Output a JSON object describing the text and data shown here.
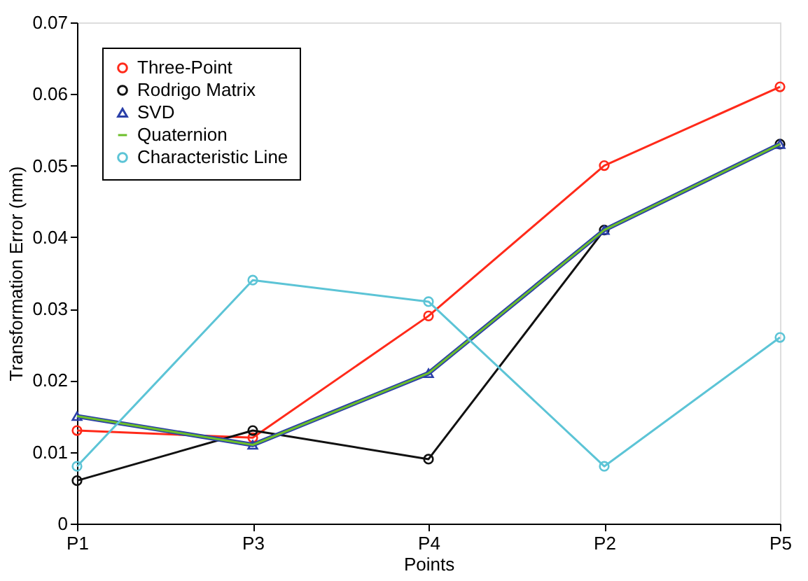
{
  "chart_data": {
    "type": "line",
    "xlabel": "Points",
    "ylabel": "Transformation Error (mm)",
    "categories": [
      "P1",
      "P3",
      "P4",
      "P2",
      "P5"
    ],
    "series": [
      {
        "name": "Three-Point",
        "color": "#ff2a1a",
        "marker": "circle",
        "values": [
          0.013,
          0.012,
          0.029,
          0.05,
          0.061
        ]
      },
      {
        "name": "Rodrigo Matrix",
        "color": "#111111",
        "marker": "circle",
        "values": [
          0.006,
          0.013,
          0.009,
          0.041,
          0.053
        ]
      },
      {
        "name": "SVD",
        "color": "#2a3fa8",
        "marker": "triangle",
        "values": [
          0.015,
          0.011,
          0.021,
          0.041,
          0.053
        ]
      },
      {
        "name": "Quaternion",
        "color": "#6cbf2a",
        "marker": "none",
        "values": [
          0.015,
          0.011,
          0.021,
          0.041,
          0.053
        ]
      },
      {
        "name": "Characteristic Line",
        "color": "#5cc4d6",
        "marker": "circle",
        "values": [
          0.008,
          0.034,
          0.031,
          0.008,
          0.026
        ]
      }
    ],
    "ylim": [
      0,
      0.07
    ],
    "yticks": [
      0,
      0.01,
      0.02,
      0.03,
      0.04,
      0.05,
      0.06,
      0.07
    ],
    "grid": false,
    "legend": "top left",
    "line_style": "solid"
  }
}
